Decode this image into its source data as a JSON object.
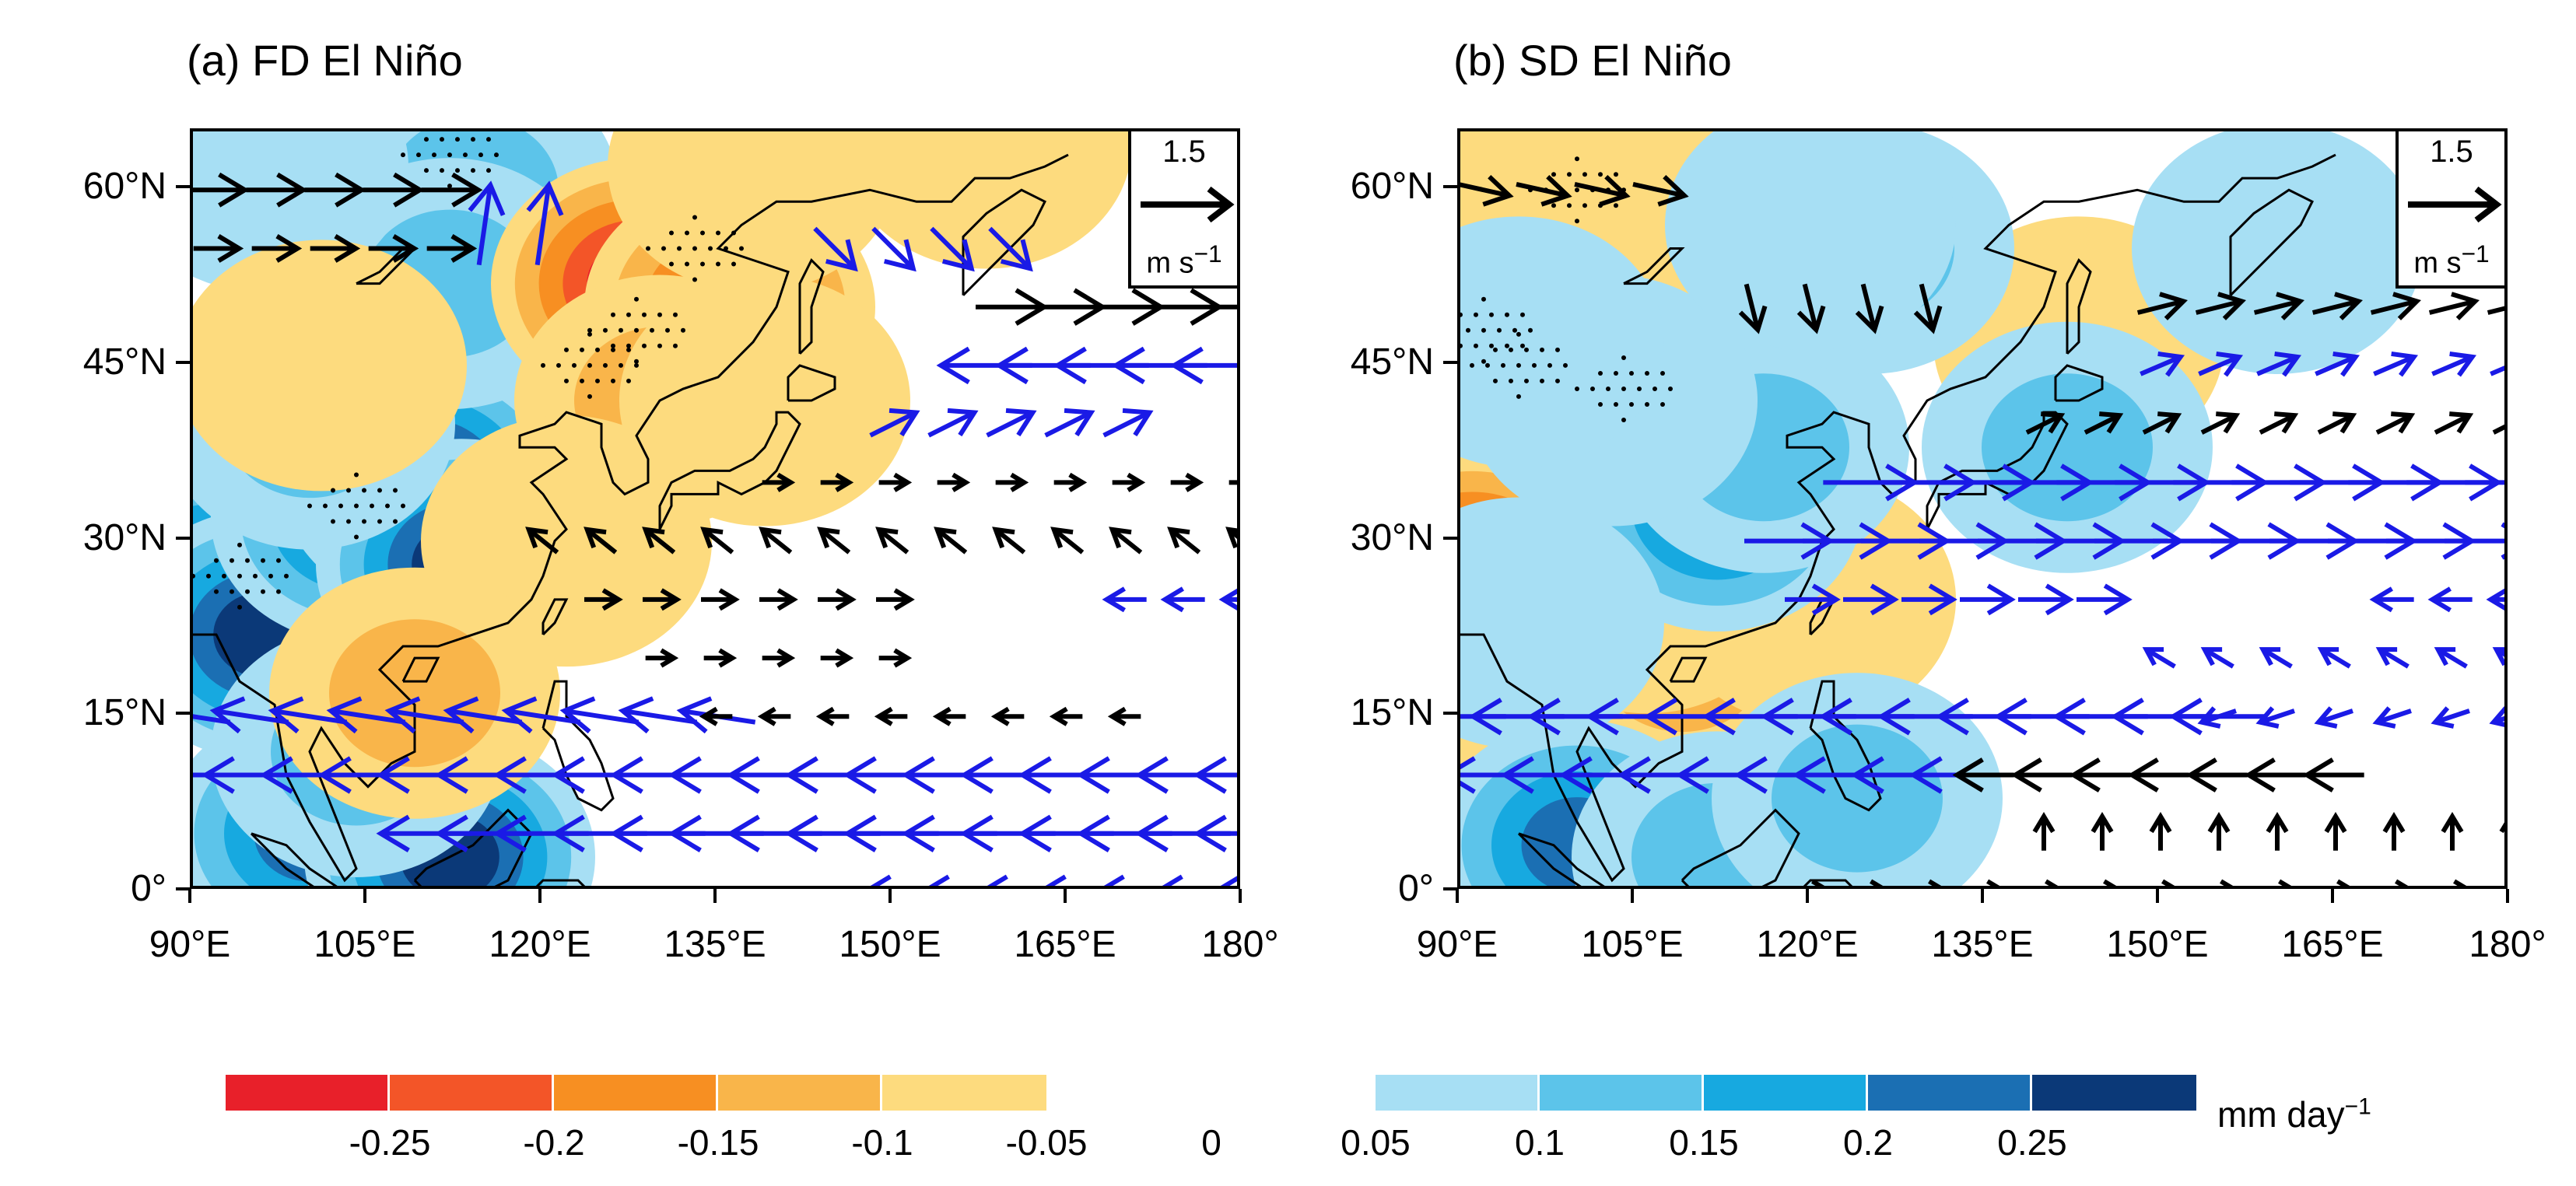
{
  "colors": {
    "neg": [
      "#e8202a",
      "#f35528",
      "#f78f22",
      "#f9b54a",
      "#fddb7e"
    ],
    "pos": [
      "#a7dff4",
      "#5cc4ea",
      "#17a9e0",
      "#1b6fb3",
      "#0b3978"
    ],
    "vector_black": "#000000",
    "vector_blue": "#1a1ae6"
  },
  "panels": [
    {
      "title": "(a) FD El Niño",
      "reference_vector": {
        "value": "1.5",
        "units": "m s",
        "units_exp": "−1"
      },
      "fields": [
        {
          "lon": 92,
          "lat": 26,
          "value": 0.3
        },
        {
          "lon": 96,
          "lat": 22,
          "value": 0.26
        },
        {
          "lon": 104,
          "lat": 32,
          "value": 0.22
        },
        {
          "lon": 110,
          "lat": 35,
          "value": 0.27
        },
        {
          "lon": 113,
          "lat": 28,
          "value": 0.26
        },
        {
          "lon": 100,
          "lat": 40,
          "value": 0.12
        },
        {
          "lon": 108,
          "lat": 55,
          "value": 0.12
        },
        {
          "lon": 114,
          "lat": 60,
          "value": 0.14
        },
        {
          "lon": 112,
          "lat": 52,
          "value": 0.1
        },
        {
          "lon": 96,
          "lat": 62,
          "value": 0.08
        },
        {
          "lon": 100,
          "lat": 5,
          "value": 0.22
        },
        {
          "lon": 112,
          "lat": 3,
          "value": 0.26
        },
        {
          "lon": 104,
          "lat": 12,
          "value": 0.14
        },
        {
          "lon": 128,
          "lat": 52,
          "value": -0.28
        },
        {
          "lon": 136,
          "lat": 50,
          "value": -0.24
        },
        {
          "lon": 130,
          "lat": 42,
          "value": -0.13
        },
        {
          "lon": 139,
          "lat": 42,
          "value": -0.09
        },
        {
          "lon": 138,
          "lat": 62,
          "value": -0.06
        },
        {
          "lon": 122,
          "lat": 30,
          "value": -0.06
        },
        {
          "lon": 109,
          "lat": 17,
          "value": -0.11
        },
        {
          "lon": 101,
          "lat": 45,
          "value": -0.06
        },
        {
          "lon": 158,
          "lat": 64,
          "value": -0.06
        }
      ],
      "stipple": [
        [
          128,
          48
        ],
        [
          133,
          55
        ],
        [
          124,
          45
        ],
        [
          112,
          63
        ],
        [
          104,
          33
        ],
        [
          94,
          27
        ]
      ],
      "vectors": [
        {
          "lat": 60,
          "u": 1.0,
          "v": 0.0,
          "sig": false,
          "lon_from": 92,
          "lon_to": 114
        },
        {
          "lat": 55,
          "u": 0.8,
          "v": 0.0,
          "sig": false,
          "lon_from": 92,
          "lon_to": 114
        },
        {
          "lat": 57,
          "u": 0.2,
          "v": 1.4,
          "sig": true,
          "lon_from": 115,
          "lon_to": 124
        },
        {
          "lat": 55,
          "u": 0.7,
          "v": -0.7,
          "sig": true,
          "lon_from": 145,
          "lon_to": 160
        },
        {
          "lat": 50,
          "u": 1.2,
          "v": 0.0,
          "sig": false,
          "lon_from": 160,
          "lon_to": 180
        },
        {
          "lat": 45,
          "u": -1.6,
          "v": 0.0,
          "sig": true,
          "lon_from": 158,
          "lon_to": 180
        },
        {
          "lat": 40,
          "u": 0.8,
          "v": 0.4,
          "sig": true,
          "lon_from": 150,
          "lon_to": 170
        },
        {
          "lat": 35,
          "u": 0.5,
          "v": 0.0,
          "sig": false,
          "lon_from": 140,
          "lon_to": 180
        },
        {
          "lat": 30,
          "u": -0.5,
          "v": 0.4,
          "sig": false,
          "lon_from": 120,
          "lon_to": 180
        },
        {
          "lat": 25,
          "u": 0.6,
          "v": 0.0,
          "sig": false,
          "lon_from": 125,
          "lon_to": 150
        },
        {
          "lat": 25,
          "u": -0.7,
          "v": 0.0,
          "sig": true,
          "lon_from": 170,
          "lon_to": 180
        },
        {
          "lat": 20,
          "u": 0.5,
          "v": 0.0,
          "sig": false,
          "lon_from": 130,
          "lon_to": 150
        },
        {
          "lat": 15,
          "u": -1.3,
          "v": 0.2,
          "sig": true,
          "lon_from": 90,
          "lon_to": 135
        },
        {
          "lat": 15,
          "u": -0.5,
          "v": 0.0,
          "sig": false,
          "lon_from": 135,
          "lon_to": 170
        },
        {
          "lat": 10,
          "u": -1.6,
          "v": 0.0,
          "sig": true,
          "lon_from": 90,
          "lon_to": 180
        },
        {
          "lat": 5,
          "u": -1.6,
          "v": 0.0,
          "sig": true,
          "lon_from": 110,
          "lon_to": 180
        },
        {
          "lat": 0,
          "u": -1.0,
          "v": 0.0,
          "sig": true,
          "lon_from": 150,
          "lon_to": 180
        }
      ]
    },
    {
      "title": "(b) SD El Niño",
      "reference_vector": {
        "value": "1.5",
        "units": "m s",
        "units_exp": "−1"
      },
      "fields": [
        {
          "lon": 102,
          "lat": 60,
          "value": -0.16
        },
        {
          "lon": 97,
          "lat": 62,
          "value": -0.08
        },
        {
          "lon": 109,
          "lat": 58,
          "value": -0.07
        },
        {
          "lon": 91,
          "lat": 27,
          "value": -0.28
        },
        {
          "lon": 92,
          "lat": 20,
          "value": -0.13
        },
        {
          "lon": 109,
          "lat": 20,
          "value": -0.13
        },
        {
          "lon": 106,
          "lat": 26,
          "value": -0.07
        },
        {
          "lon": 120,
          "lat": 25,
          "value": -0.06
        },
        {
          "lon": 143,
          "lat": 47,
          "value": -0.07
        },
        {
          "lon": 112,
          "lat": 33,
          "value": 0.24
        },
        {
          "lon": 116,
          "lat": 38,
          "value": 0.15
        },
        {
          "lon": 103,
          "lat": 42,
          "value": 0.08
        },
        {
          "lon": 95,
          "lat": 47,
          "value": 0.07
        },
        {
          "lon": 125,
          "lat": 55,
          "value": 0.14
        },
        {
          "lon": 120,
          "lat": 57,
          "value": 0.07
        },
        {
          "lon": 142,
          "lat": 38,
          "value": 0.13
        },
        {
          "lon": 100,
          "lat": 4,
          "value": 0.23
        },
        {
          "lon": 112,
          "lat": 3,
          "value": 0.12
        },
        {
          "lon": 124,
          "lat": 8,
          "value": 0.1
        },
        {
          "lon": 95,
          "lat": 23,
          "value": 0.06
        },
        {
          "lon": 160,
          "lat": 55,
          "value": 0.06
        }
      ],
      "stipple": [
        [
          100,
          60
        ],
        [
          95,
          45
        ],
        [
          104,
          43
        ],
        [
          92,
          48
        ]
      ],
      "vectors": [
        {
          "lat": 60,
          "u": 0.9,
          "v": -0.2,
          "sig": false,
          "lon_from": 92,
          "lon_to": 110
        },
        {
          "lat": 50,
          "u": 0.2,
          "v": -0.8,
          "sig": false,
          "lon_from": 115,
          "lon_to": 130
        },
        {
          "lat": 50,
          "u": 0.8,
          "v": 0.2,
          "sig": false,
          "lon_from": 150,
          "lon_to": 180
        },
        {
          "lat": 45,
          "u": 0.7,
          "v": 0.3,
          "sig": true,
          "lon_from": 150,
          "lon_to": 180
        },
        {
          "lat": 40,
          "u": 0.6,
          "v": 0.3,
          "sig": false,
          "lon_from": 140,
          "lon_to": 180
        },
        {
          "lat": 35,
          "u": 1.6,
          "v": 0.0,
          "sig": true,
          "lon_from": 125,
          "lon_to": 180
        },
        {
          "lat": 30,
          "u": 1.5,
          "v": 0.0,
          "sig": true,
          "lon_from": 118,
          "lon_to": 180
        },
        {
          "lat": 25,
          "u": 0.9,
          "v": 0.0,
          "sig": true,
          "lon_from": 120,
          "lon_to": 145
        },
        {
          "lat": 25,
          "u": -0.7,
          "v": 0.0,
          "sig": true,
          "lon_from": 170,
          "lon_to": 180
        },
        {
          "lat": 20,
          "u": -0.5,
          "v": 0.3,
          "sig": true,
          "lon_from": 150,
          "lon_to": 180
        },
        {
          "lat": 15,
          "u": -1.6,
          "v": 0.0,
          "sig": true,
          "lon_from": 90,
          "lon_to": 155
        },
        {
          "lat": 15,
          "u": -0.6,
          "v": -0.2,
          "sig": true,
          "lon_from": 155,
          "lon_to": 180
        },
        {
          "lat": 10,
          "u": -1.3,
          "v": 0.0,
          "sig": true,
          "lon_from": 92,
          "lon_to": 135
        },
        {
          "lat": 10,
          "u": -1.0,
          "v": 0.0,
          "sig": false,
          "lon_from": 135,
          "lon_to": 165
        },
        {
          "lat": 5,
          "u": 0.0,
          "v": 0.6,
          "sig": false,
          "lon_from": 140,
          "lon_to": 180
        },
        {
          "lat": 0,
          "u": 0.7,
          "v": 0.0,
          "sig": false,
          "lon_from": 120,
          "lon_to": 180
        }
      ]
    }
  ],
  "axes": {
    "lat_ticks": [
      "0°",
      "15°N",
      "30°N",
      "45°N",
      "60°N"
    ],
    "lon_ticks": [
      "90°E",
      "105°E",
      "120°E",
      "135°E",
      "150°E",
      "165°E",
      "180°"
    ]
  },
  "colorbar": {
    "neg_labels": [
      "-0.25",
      "-0.2",
      "-0.15",
      "-0.1",
      "-0.05"
    ],
    "zero_label": "0",
    "pos_labels": [
      "0.05",
      "0.1",
      "0.15",
      "0.2",
      "0.25"
    ],
    "units": "mm day",
    "units_exp": "−1"
  }
}
